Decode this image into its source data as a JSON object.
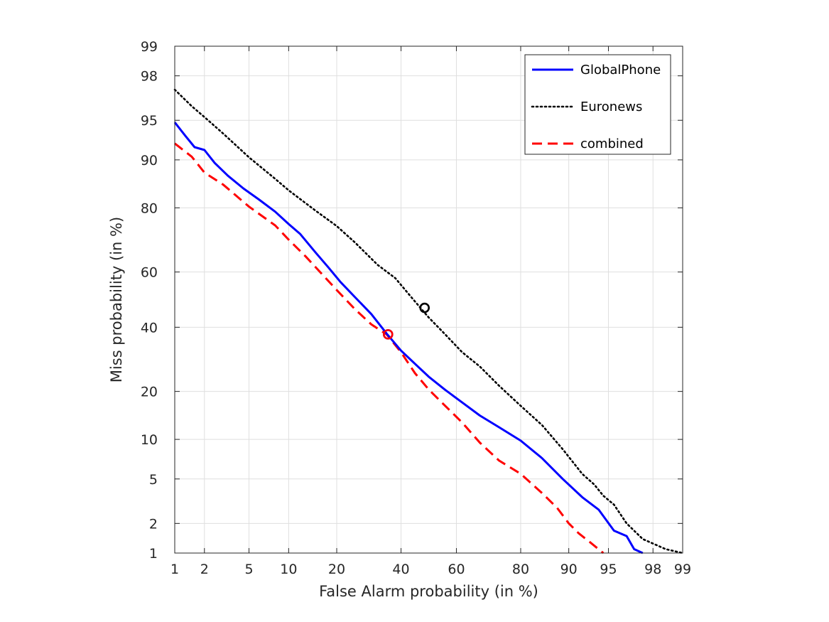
{
  "chart_data": {
    "type": "line",
    "title": "",
    "xlabel": "False Alarm probability (in %)",
    "ylabel": "Miss probability (in %)",
    "scale": "probit",
    "xlim": [
      1,
      99
    ],
    "ylim": [
      1,
      99
    ],
    "x_ticks": [
      1,
      2,
      5,
      10,
      20,
      40,
      60,
      80,
      90,
      95,
      98,
      99
    ],
    "y_ticks": [
      1,
      2,
      5,
      10,
      20,
      40,
      60,
      80,
      90,
      95,
      98,
      99
    ],
    "grid": true,
    "legend_position": "top-right",
    "series": [
      {
        "name": "GlobalPhone",
        "color": "#0000ff",
        "style": "solid",
        "points": [
          [
            1.0,
            94.8
          ],
          [
            1.3,
            93.3
          ],
          [
            1.6,
            91.9
          ],
          [
            2.0,
            91.5
          ],
          [
            2.5,
            89.5
          ],
          [
            3.3,
            87.2
          ],
          [
            4.5,
            84.6
          ],
          [
            6.0,
            82.1
          ],
          [
            8.0,
            79.0
          ],
          [
            10.0,
            75.6
          ],
          [
            12.0,
            72.6
          ],
          [
            15.0,
            66.8
          ],
          [
            18.0,
            61.5
          ],
          [
            21.0,
            56.4
          ],
          [
            25.0,
            50.9
          ],
          [
            30.0,
            44.7
          ],
          [
            35.0,
            37.8
          ],
          [
            40.0,
            32.0
          ],
          [
            45.0,
            27.8
          ],
          [
            50.0,
            24.0
          ],
          [
            56.0,
            20.4
          ],
          [
            62.0,
            17.3
          ],
          [
            68.0,
            14.4
          ],
          [
            74.0,
            12.1
          ],
          [
            80.0,
            9.8
          ],
          [
            85.0,
            7.3
          ],
          [
            89.0,
            5.0
          ],
          [
            92.0,
            3.5
          ],
          [
            94.0,
            2.7
          ],
          [
            95.5,
            1.7
          ],
          [
            96.5,
            1.5
          ],
          [
            97.0,
            1.1
          ],
          [
            97.5,
            1.0
          ]
        ],
        "marker": {
          "x": 35.5,
          "y": 37.5
        }
      },
      {
        "name": "Euronews",
        "color": "#000000",
        "style": "dotted",
        "points": [
          [
            1.0,
            97.3
          ],
          [
            1.5,
            96.2
          ],
          [
            2.0,
            95.3
          ],
          [
            3.0,
            93.6
          ],
          [
            5.0,
            90.4
          ],
          [
            8.0,
            86.6
          ],
          [
            10.0,
            84.2
          ],
          [
            15.0,
            79.3
          ],
          [
            20.0,
            75.0
          ],
          [
            25.0,
            70.0
          ],
          [
            32.0,
            62.5
          ],
          [
            38.0,
            57.8
          ],
          [
            44.0,
            50.5
          ],
          [
            50.0,
            43.5
          ],
          [
            56.0,
            37.5
          ],
          [
            62.0,
            31.5
          ],
          [
            68.0,
            27.0
          ],
          [
            74.0,
            21.5
          ],
          [
            80.0,
            16.5
          ],
          [
            85.0,
            12.5
          ],
          [
            89.0,
            8.5
          ],
          [
            92.0,
            5.5
          ],
          [
            93.5,
            4.5
          ],
          [
            94.5,
            3.6
          ],
          [
            95.5,
            3.0
          ],
          [
            96.5,
            2.0
          ],
          [
            97.5,
            1.4
          ],
          [
            98.5,
            1.1
          ],
          [
            99.0,
            1.0
          ]
        ],
        "marker": {
          "x": 48.5,
          "y": 47.0
        }
      },
      {
        "name": "combined",
        "color": "#ff0000",
        "style": "dashed",
        "points": [
          [
            1.0,
            92.4
          ],
          [
            1.5,
            90.5
          ],
          [
            2.0,
            87.8
          ],
          [
            3.0,
            85.4
          ],
          [
            5.0,
            80.3
          ],
          [
            8.0,
            75.2
          ],
          [
            10.0,
            70.9
          ],
          [
            13.0,
            65.4
          ],
          [
            16.0,
            60.0
          ],
          [
            20.0,
            53.5
          ],
          [
            25.0,
            46.5
          ],
          [
            30.0,
            41.0
          ],
          [
            35.0,
            37.5
          ],
          [
            40.0,
            31.5
          ],
          [
            45.0,
            25.0
          ],
          [
            50.0,
            20.5
          ],
          [
            56.0,
            16.5
          ],
          [
            62.0,
            13.0
          ],
          [
            68.0,
            9.5
          ],
          [
            74.0,
            7.0
          ],
          [
            80.0,
            5.5
          ],
          [
            85.0,
            3.8
          ],
          [
            88.0,
            2.8
          ],
          [
            90.0,
            2.0
          ],
          [
            91.5,
            1.6
          ],
          [
            93.0,
            1.3
          ],
          [
            94.5,
            1.0
          ]
        ],
        "marker": {
          "x": 35.5,
          "y": 37.5
        }
      }
    ]
  }
}
